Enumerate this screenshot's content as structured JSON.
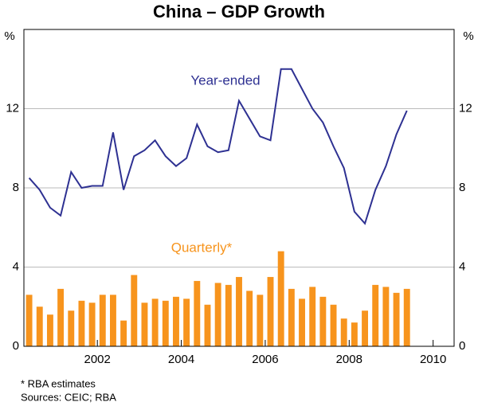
{
  "chart_data": {
    "type": "combo",
    "title": "China – GDP Growth",
    "ylabel": "%",
    "y2label": "%",
    "x": [
      2000.375,
      2000.625,
      2000.875,
      2001.125,
      2001.375,
      2001.625,
      2001.875,
      2002.125,
      2002.375,
      2002.625,
      2002.875,
      2003.125,
      2003.375,
      2003.625,
      2003.875,
      2004.125,
      2004.375,
      2004.625,
      2004.875,
      2005.125,
      2005.375,
      2005.625,
      2005.875,
      2006.125,
      2006.375,
      2006.625,
      2006.875,
      2007.125,
      2007.375,
      2007.625,
      2007.875,
      2008.125,
      2008.375,
      2008.625,
      2008.875,
      2009.125,
      2009.375
    ],
    "series": [
      {
        "name": "Year-ended",
        "type": "line",
        "color": "#2e3192",
        "values": [
          8.5,
          7.9,
          7.0,
          6.6,
          8.8,
          8.0,
          8.1,
          8.1,
          10.8,
          7.9,
          9.6,
          9.9,
          10.4,
          9.6,
          9.1,
          9.5,
          11.2,
          10.1,
          9.8,
          9.9,
          12.4,
          11.5,
          10.6,
          10.4,
          14.0,
          14.0,
          13.0,
          12.0,
          11.3,
          10.1,
          9.0,
          6.8,
          6.2,
          7.9,
          9.1,
          10.7,
          11.9
        ]
      },
      {
        "name": "Quarterly*",
        "type": "bar",
        "color": "#f7941d",
        "values": [
          2.6,
          2.0,
          1.6,
          2.9,
          1.8,
          2.3,
          2.2,
          2.6,
          2.6,
          1.3,
          3.6,
          2.2,
          2.4,
          2.3,
          2.5,
          2.4,
          3.3,
          2.1,
          3.2,
          3.1,
          3.5,
          2.8,
          2.6,
          3.5,
          4.8,
          2.9,
          2.4,
          3.0,
          2.5,
          2.1,
          1.4,
          1.2,
          1.8,
          3.1,
          3.0,
          2.7,
          2.9
        ]
      }
    ],
    "xlim": [
      2000.25,
      2010.5
    ],
    "xticks": [
      2002,
      2004,
      2006,
      2008,
      2010
    ],
    "ylim": [
      0,
      16
    ],
    "yticks": [
      0,
      4,
      8,
      12
    ],
    "y2lim": [
      0,
      16
    ],
    "y2ticks": [
      0,
      4,
      8,
      12
    ],
    "grid": true,
    "footnotes": [
      "*    RBA estimates",
      "Sources: CEIC; RBA"
    ]
  }
}
